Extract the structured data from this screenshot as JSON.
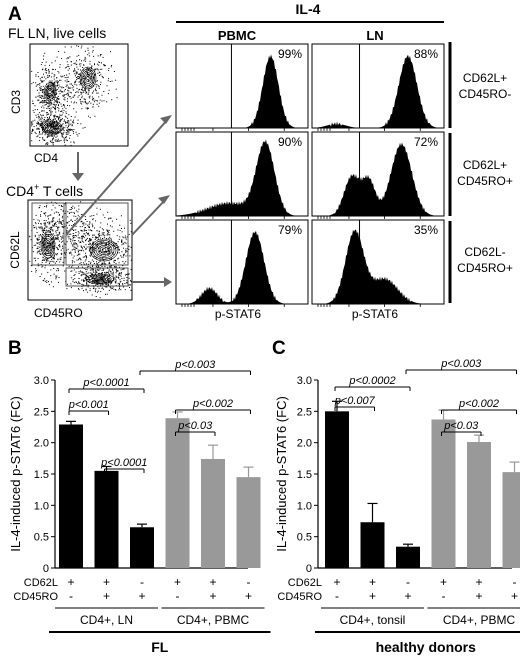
{
  "panel_a": {
    "letter": "A",
    "title": "FL LN, live cells",
    "dot1_ylabel": "CD3",
    "dot1_xlabel": "CD4",
    "subtitle_prefix": "CD4",
    "subtitle_sup": "+",
    "subtitle_suffix": " T cells",
    "dot2_ylabel": "CD62L",
    "dot2_xlabel": "CD45RO",
    "il4_header": "IL-4",
    "col_headers": [
      "PBMC",
      "LN"
    ],
    "row_labels": [
      [
        "CD62L+",
        "CD45RO-"
      ],
      [
        "CD62L+",
        "CD45RO+"
      ],
      [
        "CD62L-",
        "CD45RO+"
      ]
    ],
    "hist_xlabel": "p-STAT6",
    "percentages": [
      [
        "99%",
        "88%"
      ],
      [
        "90%",
        "72%"
      ],
      [
        "79%",
        "35%"
      ]
    ]
  },
  "chart_data": [
    {
      "type": "bar",
      "letter": "B",
      "ylabel": "IL-4-induced p-STAT6 (FC)",
      "ylim": [
        0,
        3.0
      ],
      "yticks": [
        "0",
        "0.5",
        "1.0",
        "1.5",
        "2.0",
        "2.5",
        "3.0"
      ],
      "values": [
        2.29,
        1.55,
        0.65,
        2.39,
        1.74,
        1.45
      ],
      "errors": [
        0.05,
        0.07,
        0.05,
        0.1,
        0.22,
        0.16
      ],
      "colors": [
        "#000000",
        "#000000",
        "#000000",
        "#999999",
        "#999999",
        "#999999"
      ],
      "marker_labels": [
        "CD62L",
        "CD45RO"
      ],
      "marker_rows": [
        [
          "+",
          "+",
          "-",
          "+",
          "+",
          "-"
        ],
        [
          "-",
          "+",
          "+",
          "-",
          "+",
          "+"
        ]
      ],
      "group_labels": [
        "CD4+, LN",
        "CD4+, PBMC"
      ],
      "footer": "FL",
      "brackets": [
        {
          "from": 0,
          "to": 1,
          "label": "p<0.001"
        },
        {
          "from": 0,
          "to": 2,
          "label": "p<0.0001"
        },
        {
          "from": 1,
          "to": 2,
          "label": "p<0.0001"
        },
        {
          "from": 3,
          "to": 4,
          "label": "p<0.03"
        },
        {
          "from": 3,
          "to": 5,
          "label": "p<0.002"
        },
        {
          "from": 2,
          "to": 5,
          "label": "p<0.003"
        }
      ]
    },
    {
      "type": "bar",
      "letter": "C",
      "ylabel": "IL-4-induced p-STAT6 (FC)",
      "ylim": [
        0,
        3.0
      ],
      "yticks": [
        "0",
        "0.5",
        "1.0",
        "1.5",
        "2.0",
        "2.5",
        "3.0"
      ],
      "values": [
        2.5,
        0.73,
        0.34,
        2.37,
        2.01,
        1.53
      ],
      "errors": [
        0.16,
        0.3,
        0.04,
        0.15,
        0.11,
        0.16
      ],
      "colors": [
        "#000000",
        "#000000",
        "#000000",
        "#999999",
        "#999999",
        "#999999"
      ],
      "marker_labels": [
        "CD62L",
        "CD45RO"
      ],
      "marker_rows": [
        [
          "+",
          "+",
          "-",
          "+",
          "+",
          "-"
        ],
        [
          "-",
          "+",
          "+",
          "-",
          "+",
          "+"
        ]
      ],
      "group_labels": [
        "CD4+, tonsil",
        "CD4+, PBMC"
      ],
      "footer": "healthy donors",
      "brackets": [
        {
          "from": 0,
          "to": 1,
          "label": "p<0.007"
        },
        {
          "from": 0,
          "to": 2,
          "label": "p<0.0002"
        },
        {
          "from": 3,
          "to": 4,
          "label": "p<0.03"
        },
        {
          "from": 3,
          "to": 5,
          "label": "p<0.002"
        },
        {
          "from": 2,
          "to": 5,
          "label": "p<0.003"
        }
      ]
    }
  ]
}
